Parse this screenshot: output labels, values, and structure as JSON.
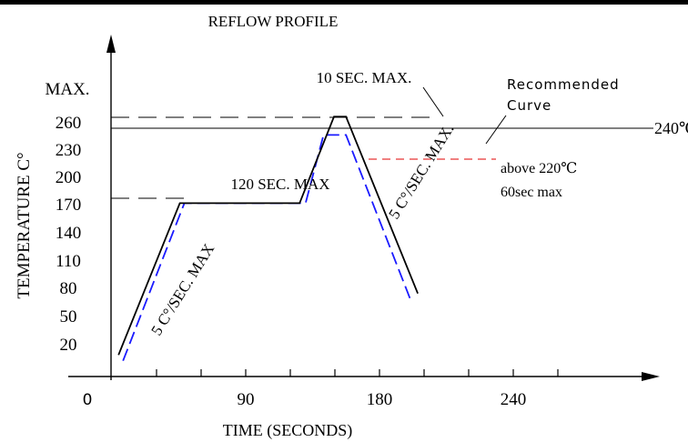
{
  "chart_data": {
    "type": "line",
    "title": "REFLOW PROFILE",
    "xlabel": "TIME (SECONDS)",
    "ylabel": "TEMPERATURE  C°",
    "x_ticks": [
      "0",
      "90",
      "180",
      "240"
    ],
    "y_ticks": [
      "MAX.",
      "260",
      "230",
      "200",
      "170",
      "140",
      "110",
      "80",
      "50",
      "20"
    ],
    "series": [
      {
        "name": "Recommended Curve",
        "style": "dashed",
        "color": "#1a1aff",
        "points": [
          [
            8,
            8
          ],
          [
            49,
            172
          ],
          [
            130,
            172
          ],
          [
            142,
            243
          ],
          [
            157,
            243
          ],
          [
            200,
            72
          ]
        ]
      },
      {
        "name": "",
        "style": "solid",
        "color": "#000000",
        "points": [
          [
            5,
            14
          ],
          [
            46,
            172
          ],
          [
            126,
            172
          ],
          [
            149,
            262
          ],
          [
            157,
            262
          ],
          [
            205,
            78
          ]
        ]
      }
    ],
    "reference_lines": [
      {
        "value": 262,
        "style": "dashed",
        "color": "#000000"
      },
      {
        "value": 250,
        "style": "solid",
        "color": "#000000",
        "label": "240℃"
      },
      {
        "value": 220,
        "style": "dashed",
        "color": "#e00000"
      },
      {
        "value": 172,
        "style": "dashed",
        "color": "#000000"
      }
    ],
    "annotations": [
      "10 SEC. MAX.",
      "120 SEC. MAX",
      "5 C°/SEC. MAX.",
      "5 C°/SEC. MAX",
      "above 220℃",
      "60sec max",
      "Recommended",
      "Curve"
    ]
  },
  "colors": {
    "axis": "#000000",
    "recommended_curve": "#1a1aff",
    "threshold_220": "#e00000"
  }
}
